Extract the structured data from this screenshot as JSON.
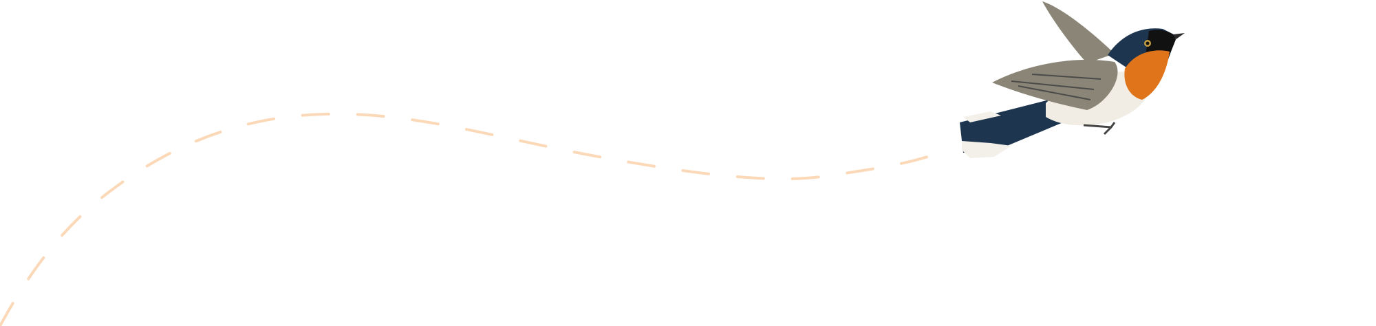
{
  "illustration": {
    "icon": "bird-icon",
    "colors": {
      "flight_path": "#fbd9b8",
      "bird_back": "#1e3550",
      "bird_breast": "#e0741a",
      "bird_belly": "#f1ede4",
      "bird_wing": "#8a8577"
    }
  }
}
